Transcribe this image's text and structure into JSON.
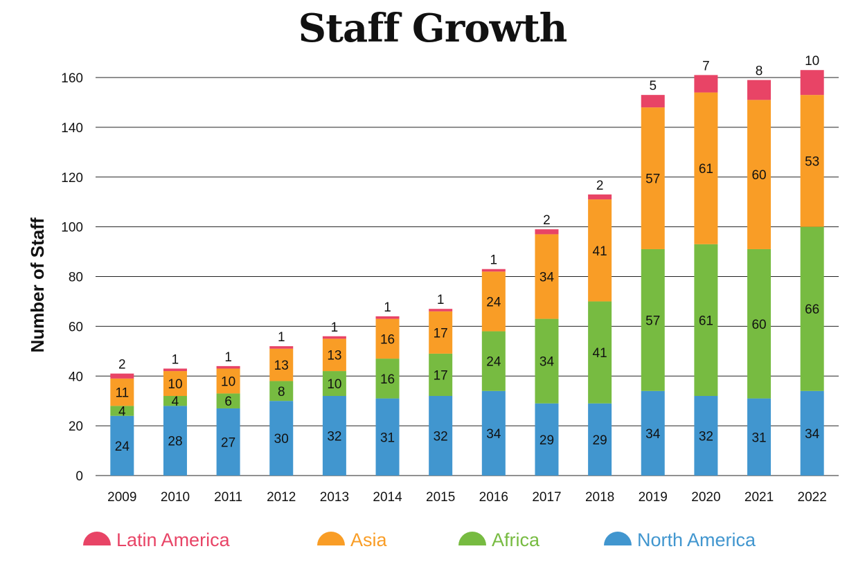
{
  "chart_data": {
    "type": "bar",
    "stacked": true,
    "title": "Staff Growth",
    "xlabel": "",
    "ylabel": "Number of Staff",
    "ylim": [
      0,
      160
    ],
    "yticks": [
      0,
      20,
      40,
      60,
      80,
      100,
      120,
      140,
      160
    ],
    "grid": true,
    "legend_position": "bottom",
    "categories": [
      "2009",
      "2010",
      "2011",
      "2012",
      "2013",
      "2014",
      "2015",
      "2016",
      "2017",
      "2018",
      "2019",
      "2020",
      "2021",
      "2022"
    ],
    "series": [
      {
        "name": "North America",
        "color": "#4196cf",
        "values": [
          24,
          28,
          27,
          30,
          32,
          31,
          32,
          34,
          29,
          29,
          34,
          32,
          31,
          34
        ]
      },
      {
        "name": "Africa",
        "color": "#77bb41",
        "values": [
          4,
          4,
          6,
          8,
          10,
          16,
          17,
          24,
          34,
          41,
          57,
          61,
          60,
          66
        ]
      },
      {
        "name": "Asia",
        "color": "#f99d26",
        "values": [
          11,
          10,
          10,
          13,
          13,
          16,
          17,
          24,
          34,
          41,
          57,
          61,
          60,
          53
        ]
      },
      {
        "name": "Latin America",
        "color": "#e84466",
        "values": [
          2,
          1,
          1,
          1,
          1,
          1,
          1,
          1,
          2,
          2,
          5,
          7,
          8,
          10
        ]
      }
    ]
  },
  "legend": {
    "items": [
      {
        "label": "Latin America",
        "color": "#e84466"
      },
      {
        "label": "Asia",
        "color": "#f99d26"
      },
      {
        "label": "Africa",
        "color": "#77bb41"
      },
      {
        "label": "North America",
        "color": "#4196cf"
      }
    ]
  }
}
